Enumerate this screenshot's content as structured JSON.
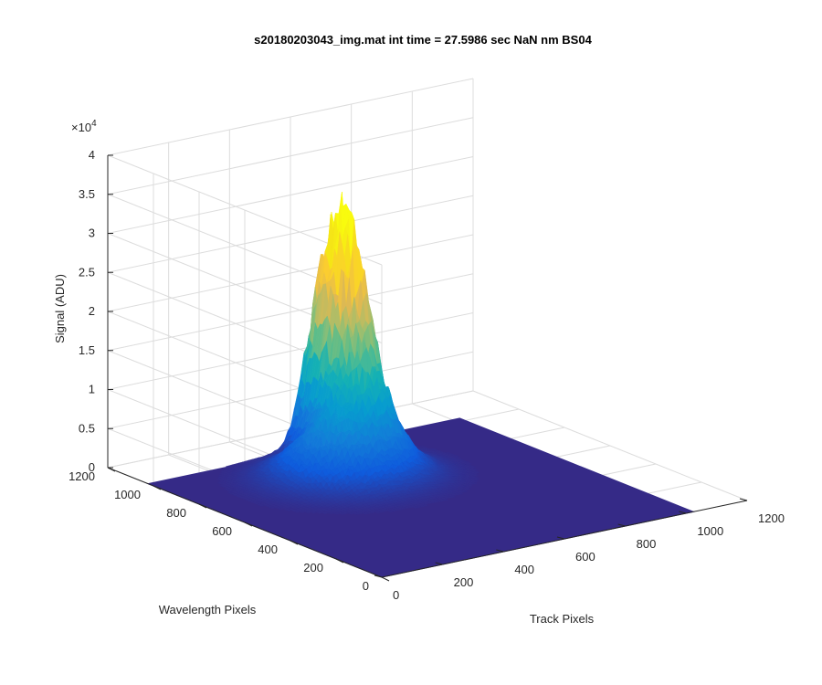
{
  "chart_data": {
    "type": "surface",
    "title": "s20180203043_img.mat int time = 27.5986 sec  NaN nm BS04",
    "xlabel": "Track Pixels",
    "ylabel": "Wavelength Pixels",
    "zlabel": "Signal (ADU)",
    "z_exponent_label": "×10",
    "z_exponent_power": "4",
    "xlim": [
      0,
      1200
    ],
    "ylim": [
      0,
      1200
    ],
    "zlim": [
      0,
      40000
    ],
    "x_ticks": [
      0,
      200,
      400,
      600,
      800,
      1000,
      1200
    ],
    "y_ticks": [
      0,
      200,
      400,
      600,
      800,
      1000,
      1200
    ],
    "z_ticks": [
      0,
      5000,
      10000,
      15000,
      20000,
      25000,
      30000,
      35000,
      40000
    ],
    "x_tick_labels": [
      "0",
      "200",
      "400",
      "600",
      "800",
      "1000",
      "1200"
    ],
    "y_tick_labels": [
      "0",
      "200",
      "400",
      "600",
      "800",
      "1000",
      "1200"
    ],
    "z_tick_labels": [
      "0",
      "0.5",
      "1",
      "1.5",
      "2",
      "2.5",
      "3",
      "3.5",
      "4"
    ],
    "grid": true,
    "colormap": "parula",
    "baseline_color": "#352a87",
    "surface_extent": {
      "x": [
        0,
        1024
      ],
      "y": [
        0,
        1024
      ]
    },
    "peaks": [
      {
        "x": 560,
        "y": 930,
        "amplitude": 29000,
        "sigma_x": 50,
        "sigma_y": 95
      },
      {
        "x": 460,
        "y": 760,
        "amplitude": 9000,
        "sigma_x": 120,
        "sigma_y": 110
      },
      {
        "x": 600,
        "y": 1000,
        "amplitude": 2200,
        "sigma_x": 15,
        "sigma_y": 15
      }
    ]
  }
}
